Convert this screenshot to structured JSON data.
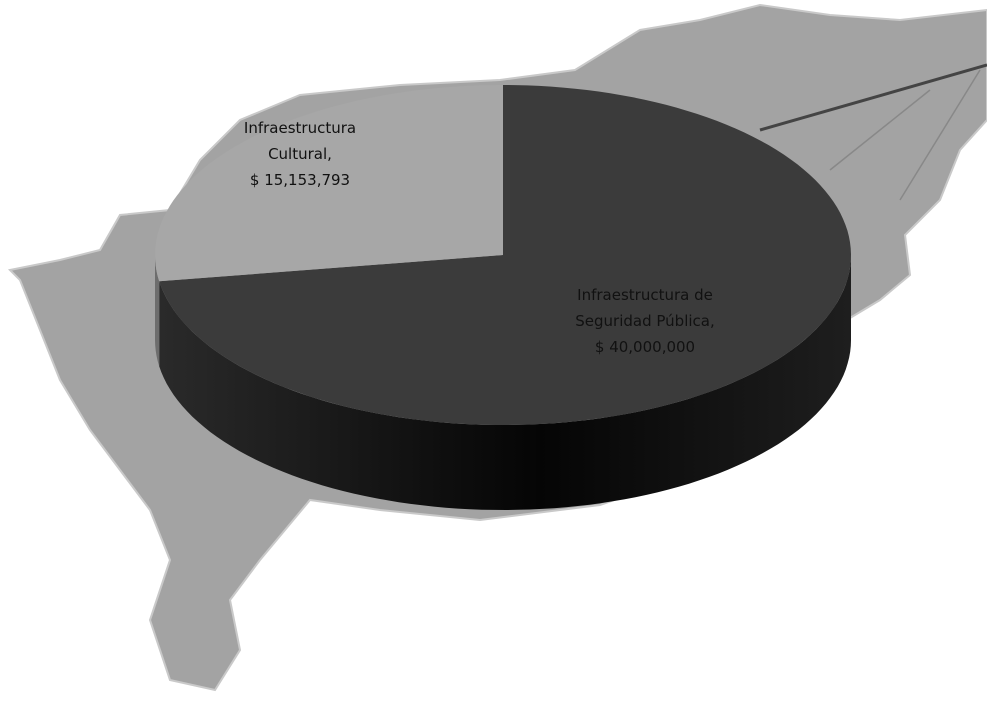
{
  "chart_data": {
    "type": "pie",
    "categories": [
      "Infraestructura de Seguridad Pública,",
      "Infraestructura Cultural,"
    ],
    "values": [
      40000000,
      15153793
    ],
    "value_labels": [
      "$ 40,000,000",
      "$ 15,153,793"
    ],
    "colors": [
      "#3b3b3b",
      "#a7a7a7"
    ]
  }
}
